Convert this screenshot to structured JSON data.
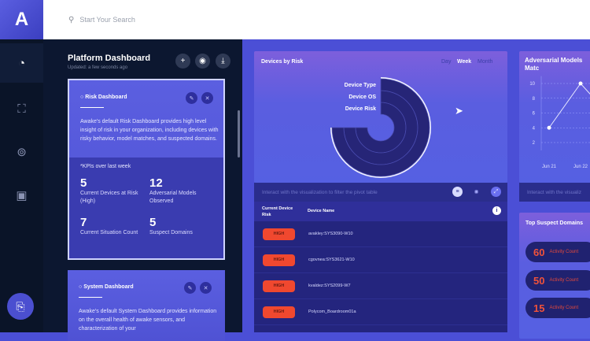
{
  "app": {
    "logo": "A"
  },
  "search": {
    "placeholder": "Start Your Search",
    "icon": "search-icon"
  },
  "rail": {
    "items": [
      {
        "name": "dashboard",
        "icon": "gauge-icon",
        "glyph": "◔"
      },
      {
        "name": "devices",
        "icon": "device-grid-icon",
        "glyph": "⛶"
      },
      {
        "name": "models",
        "icon": "circle-number-icon",
        "glyph": "⊚"
      },
      {
        "name": "chat",
        "icon": "chat-icon",
        "glyph": "▣"
      }
    ],
    "fab_glyph": "⎘"
  },
  "panel": {
    "title": "Platform Dashboard",
    "subtitle": "Updated: a few seconds ago",
    "buttons": [
      "+",
      "◉",
      "⤓"
    ]
  },
  "cards": [
    {
      "title": "Risk Dashboard",
      "description": "Awake's default Risk Dashboard provides high level insight of risk in your organization, including devices with risky behavior, model matches, and suspected domains.",
      "kpi_heading": "*KPIs over last week",
      "kpis": [
        {
          "value": "5",
          "label": "Current Devices at Risk (High)"
        },
        {
          "value": "12",
          "label": "Adversarial Models Observed"
        },
        {
          "value": "7",
          "label": "Current Situation Count"
        },
        {
          "value": "5",
          "label": "Suspect Domains"
        }
      ]
    },
    {
      "title": "System Dashboard",
      "description": "Awake's default System Dashboard provides information on the overall health of awake sensors, and characterization of your"
    }
  ],
  "devices_by_risk": {
    "title": "Devices by Risk",
    "ranges": [
      "Day",
      "Week",
      "Month"
    ],
    "selected_range": "Week",
    "ring_labels": [
      "Device Type",
      "Device OS",
      "Device Risk"
    ],
    "filter_hint": "Interact with the visualization to filter the pivot table",
    "table": {
      "headers": [
        "Current Device Risk",
        "Device Name"
      ],
      "rows": [
        {
          "risk": "HIGH",
          "device": "avakley:SYS3090-W10"
        },
        {
          "risk": "HIGH",
          "device": "cgovnea:SYS3621-W10"
        },
        {
          "risk": "HIGH",
          "device": "kvaldez:SYS2099-W7"
        },
        {
          "risk": "HIGH",
          "device": "Polycom_Boardroom01a"
        }
      ]
    }
  },
  "adversarial": {
    "title": "Adversarial Models Matc",
    "filter_hint": "Interact with the visualiz"
  },
  "chart_data": {
    "type": "line",
    "title": "Adversarial Models Matc",
    "x": [
      "Jun 21",
      "Jun 22"
    ],
    "values": [
      4,
      10
    ],
    "yticks": [
      2,
      4,
      6,
      8,
      10
    ],
    "ylim": [
      0,
      11
    ],
    "grid": true
  },
  "domains": {
    "title": "Top Suspect Domains",
    "items": [
      {
        "count": "60",
        "label": "Activity Count"
      },
      {
        "count": "50",
        "label": "Activity Count"
      },
      {
        "count": "15",
        "label": "Activity Count"
      }
    ]
  },
  "colors": {
    "high": "#f0482f",
    "accent": "#4b4fd6",
    "panel": "#0c1730"
  }
}
